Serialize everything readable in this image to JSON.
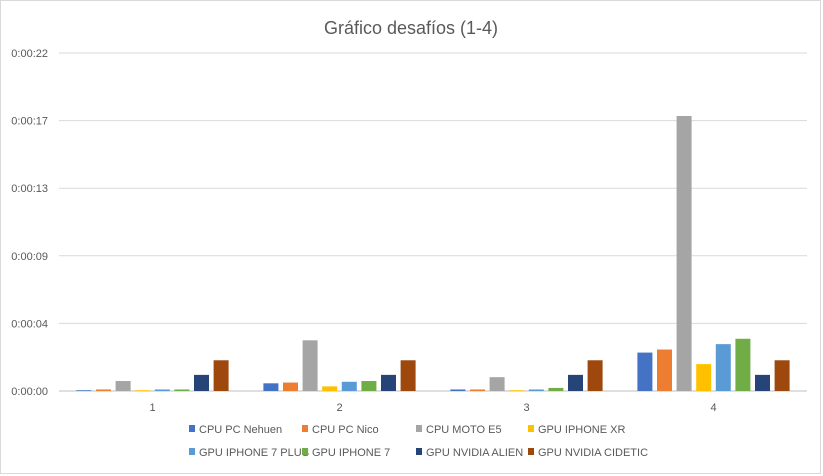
{
  "chart_data": {
    "type": "bar",
    "title": "Gráfico desafíos (1-4)",
    "xlabel": "",
    "ylabel": "",
    "categories": [
      "1",
      "2",
      "3",
      "4"
    ],
    "y_tick_labels": [
      "0:00:00",
      "0:00:04",
      "0:00:09",
      "0:00:13",
      "0:00:17",
      "0:00:22"
    ],
    "ylim": [
      0,
      22
    ],
    "grid": true,
    "legend_position": "bottom",
    "series": [
      {
        "name": "CPU PC Nehuen",
        "color": "#4472c4",
        "values": [
          0.05,
          0.5,
          0.1,
          2.5
        ]
      },
      {
        "name": "CPU PC Nico",
        "color": "#ed7d31",
        "values": [
          0.1,
          0.55,
          0.1,
          2.7
        ]
      },
      {
        "name": "CPU MOTO E5",
        "color": "#a5a5a5",
        "values": [
          0.65,
          3.3,
          0.9,
          17.9
        ]
      },
      {
        "name": "GPU IPHONE XR",
        "color": "#ffc000",
        "values": [
          0.05,
          0.3,
          0.05,
          1.75
        ]
      },
      {
        "name": "GPU IPHONE 7 PLUS",
        "color": "#5b9bd5",
        "values": [
          0.1,
          0.6,
          0.1,
          3.05
        ]
      },
      {
        "name": "GPU IPHONE 7",
        "color": "#70ad47",
        "values": [
          0.1,
          0.65,
          0.2,
          3.4
        ]
      },
      {
        "name": "GPU NVIDIA ALIEN",
        "color": "#264478",
        "values": [
          1.05,
          1.05,
          1.05,
          1.05
        ]
      },
      {
        "name": "GPU NVIDIA CIDETIC",
        "color": "#9e480e",
        "values": [
          2.0,
          2.0,
          2.0,
          2.0
        ]
      }
    ]
  }
}
